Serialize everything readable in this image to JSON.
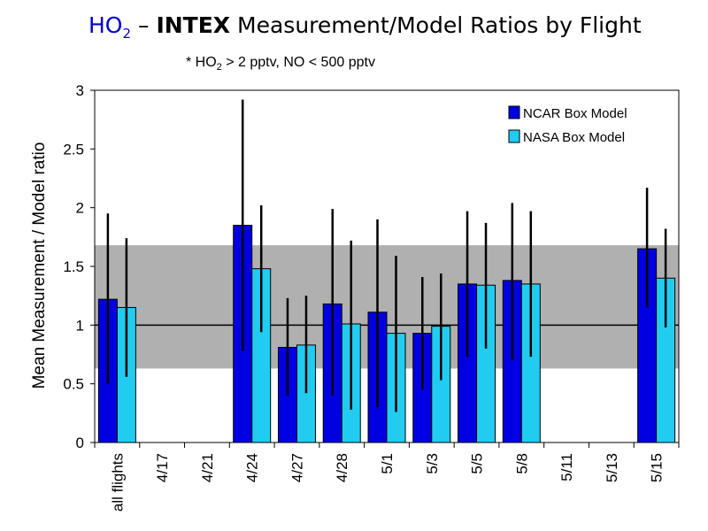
{
  "title": {
    "species": "HO",
    "species_sub": "2",
    "dash": " – ",
    "campaign": "INTEX",
    "rest": " Measurement/Model Ratios by Flight"
  },
  "subtitle": {
    "prefix": "* HO",
    "sub": "2",
    "rest": " > 2 pptv, NO < 500 pptv"
  },
  "colors": {
    "ncar": "#0000e0",
    "nasa": "#22ccf0",
    "band": "#b0b0b0",
    "error_bar": "#000000"
  },
  "chart_data": {
    "type": "bar",
    "title": "HO2 – INTEX Measurement/Model Ratios by Flight",
    "xlabel": "",
    "ylabel": "Mean Measurement / Model ratio",
    "ylim": [
      0,
      3
    ],
    "yticks": [
      "0",
      "0.5",
      "1",
      "1.5",
      "2",
      "2.5",
      "3"
    ],
    "ytick_values": [
      0,
      0.5,
      1,
      1.5,
      2,
      2.5,
      3
    ],
    "categories": [
      "all flights",
      "4/17",
      "4/21",
      "4/24",
      "4/27",
      "4/28",
      "5/1",
      "5/3",
      "5/5",
      "5/8",
      "5/11",
      "5/13",
      "5/15"
    ],
    "reference_line": 1,
    "shaded_band": [
      0.63,
      1.68
    ],
    "legend_position": "top-right",
    "series": [
      {
        "name": "NCAR Box Model",
        "values": [
          1.22,
          null,
          null,
          1.85,
          0.81,
          1.18,
          1.11,
          0.93,
          1.35,
          1.38,
          null,
          null,
          1.65
        ],
        "error_low": [
          0.5,
          null,
          null,
          0.78,
          0.4,
          0.4,
          0.3,
          0.45,
          0.73,
          0.7,
          null,
          null,
          1.15
        ],
        "error_high": [
          1.95,
          null,
          null,
          2.92,
          1.23,
          1.99,
          1.9,
          1.41,
          1.97,
          2.04,
          null,
          null,
          2.17
        ]
      },
      {
        "name": "NASA Box Model",
        "values": [
          1.15,
          null,
          null,
          1.48,
          0.83,
          1.01,
          0.93,
          0.99,
          1.34,
          1.35,
          null,
          null,
          1.4
        ],
        "error_low": [
          0.56,
          null,
          null,
          0.94,
          0.42,
          0.28,
          0.26,
          0.53,
          0.8,
          0.73,
          null,
          null,
          0.98
        ],
        "error_high": [
          1.74,
          null,
          null,
          2.02,
          1.25,
          1.72,
          1.59,
          1.44,
          1.87,
          1.97,
          null,
          null,
          1.82
        ]
      }
    ]
  }
}
